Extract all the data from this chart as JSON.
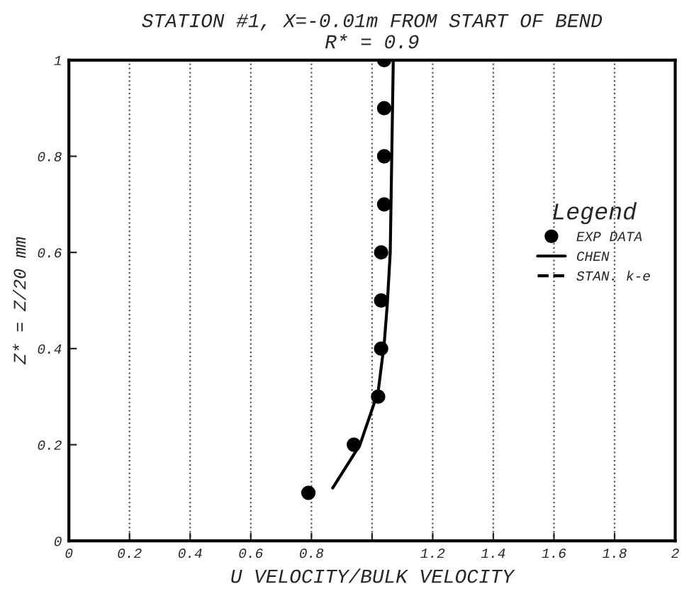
{
  "chart_data": {
    "type": "scatter",
    "title": "STATION #1, X=-0.01m FROM START OF BEND\nR* = 0.9",
    "xlabel": "U VELOCITY/BULK VELOCITY",
    "ylabel": "Z* = Z/20 mm",
    "legend_title": "Legend",
    "series": [
      {
        "name": "EXP DATA",
        "color": "#000000",
        "marker": "circle",
        "x": [
          1.04,
          1.04,
          1.04,
          1.04,
          1.03,
          1.03,
          1.03,
          1.02,
          0.94,
          0.79
        ],
        "values": [
          1.0,
          0.9,
          0.8,
          0.7,
          0.6,
          0.5,
          0.4,
          0.3,
          0.2,
          0.1
        ]
      },
      {
        "name": "CHEN",
        "type": "line",
        "color": "#000000",
        "line_style": "solid",
        "x": [
          1.07,
          1.06,
          1.05,
          1.04,
          1.02,
          0.96,
          0.87
        ],
        "values": [
          1.0,
          0.6,
          0.49,
          0.41,
          0.31,
          0.2,
          0.11
        ]
      },
      {
        "name": "STAN. k-e",
        "type": "line",
        "color": "#000000",
        "line_style": "dashed",
        "x": [
          null
        ],
        "values": [
          null
        ]
      }
    ],
    "xlim": [
      0,
      2
    ],
    "xticks": [
      0,
      0.2,
      0.4,
      0.6,
      0.8,
      {
        "value": 1,
        "label": null
      },
      1.2,
      1.4,
      1.6,
      1.8,
      2
    ],
    "ylim": [
      0,
      1
    ],
    "yticks": [
      0,
      0.2,
      0.4,
      0.6,
      0.8,
      1
    ],
    "grid": "x",
    "legend": "right"
  }
}
